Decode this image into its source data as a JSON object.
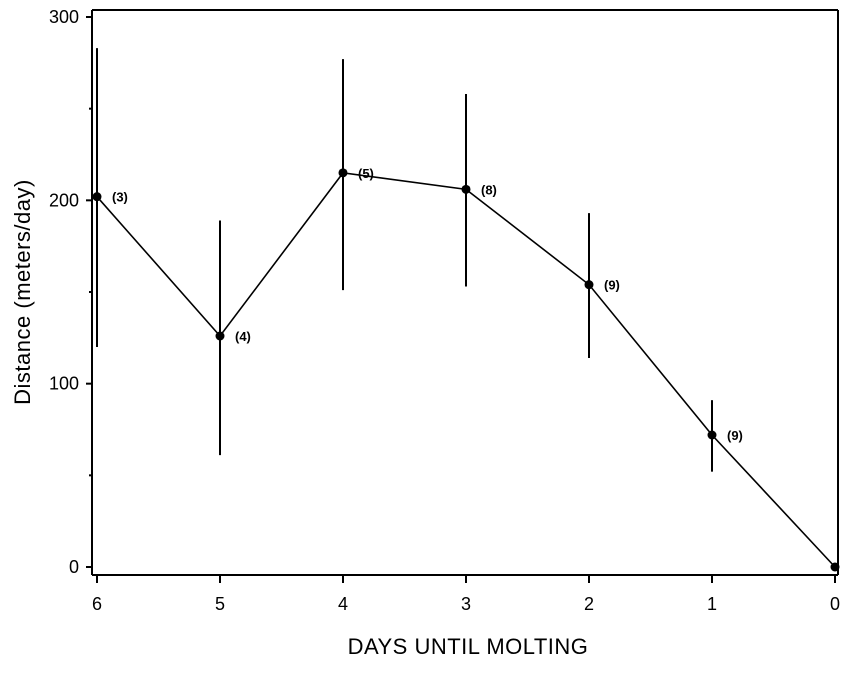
{
  "chart_data": {
    "type": "line",
    "title": "",
    "xlabel": "DAYS UNTIL MOLTING",
    "ylabel": "Distance (meters/day)",
    "xlim": [
      6,
      0
    ],
    "ylim": [
      0,
      300
    ],
    "x_ticks": [
      6,
      5,
      4,
      3,
      2,
      1,
      0
    ],
    "y_ticks": [
      0,
      100,
      200,
      300
    ],
    "x_tick_labels": [
      "6",
      "5",
      "4",
      "3",
      "2",
      "1",
      "0"
    ],
    "y_tick_labels": [
      "0",
      "100",
      "200",
      "300"
    ],
    "grid": false,
    "legend": "none",
    "series": [
      {
        "x": [
          6,
          5,
          4,
          3,
          2,
          1,
          0
        ],
        "y": [
          202,
          126,
          215,
          206,
          154,
          72,
          0
        ],
        "error_low": [
          120,
          61,
          151,
          153,
          114,
          52,
          null
        ],
        "error_high": [
          283,
          189,
          277,
          258,
          193,
          91,
          null
        ],
        "n_labels": [
          "(3)",
          "(4)",
          "(5)",
          "(8)",
          "(9)",
          "(9)",
          ""
        ]
      }
    ]
  }
}
